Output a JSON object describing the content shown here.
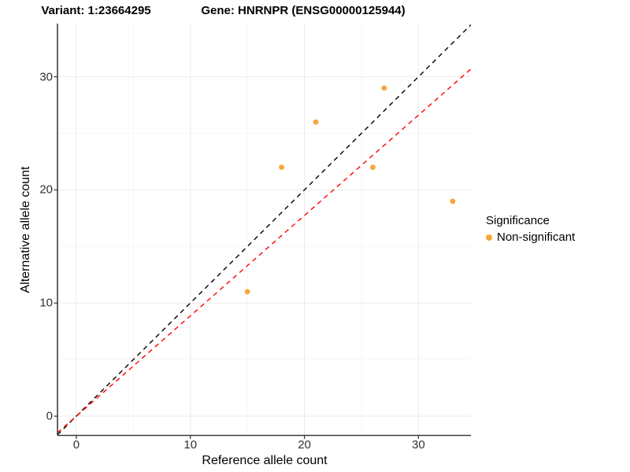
{
  "titles": {
    "variant": "Variant: 1:23664295",
    "gene": "Gene: HNRNPR (ENSG00000125944)"
  },
  "axes": {
    "x_label": "Reference allele count",
    "y_label": "Alternative allele count"
  },
  "legend": {
    "title": "Significance",
    "items": [
      {
        "label": "Non-significant",
        "color": "#F9A43C"
      }
    ]
  },
  "colors": {
    "point": "#F9A43C",
    "identity_line": "#000000",
    "regression_line": "#FF0000",
    "grid_major": "#EDEDED",
    "grid_minor": "#F5F5F5",
    "axis_line": "#3C3C3C",
    "tick_mark": "#333333",
    "tick_label": "#303030"
  },
  "chart_data": {
    "type": "scatter",
    "title_left": "Variant: 1:23664295",
    "title_right": "Gene: HNRNPR (ENSG00000125944)",
    "xlabel": "Reference allele count",
    "ylabel": "Alternative allele count",
    "xlim": [
      -1.65,
      34.6
    ],
    "ylim": [
      -1.7,
      34.7
    ],
    "x_ticks": [
      0,
      10,
      20,
      30
    ],
    "y_ticks": [
      0,
      10,
      20,
      30
    ],
    "x_minor_ticks": [
      5,
      15,
      25
    ],
    "y_minor_ticks": [
      5,
      15,
      25
    ],
    "grid": true,
    "legend_position": "right",
    "series": [
      {
        "name": "Non-significant",
        "color": "#F9A43C",
        "points": [
          [
            15,
            11
          ],
          [
            18,
            22
          ],
          [
            21,
            26
          ],
          [
            26,
            22
          ],
          [
            27,
            29
          ],
          [
            33,
            19
          ]
        ]
      }
    ],
    "lines": [
      {
        "name": "identity-line",
        "color": "#000000",
        "style": "dashed",
        "slope": 1.0,
        "intercept": 0
      },
      {
        "name": "regression-line",
        "color": "#FF0000",
        "style": "dashed",
        "slope": 0.887,
        "intercept": 0
      }
    ]
  }
}
